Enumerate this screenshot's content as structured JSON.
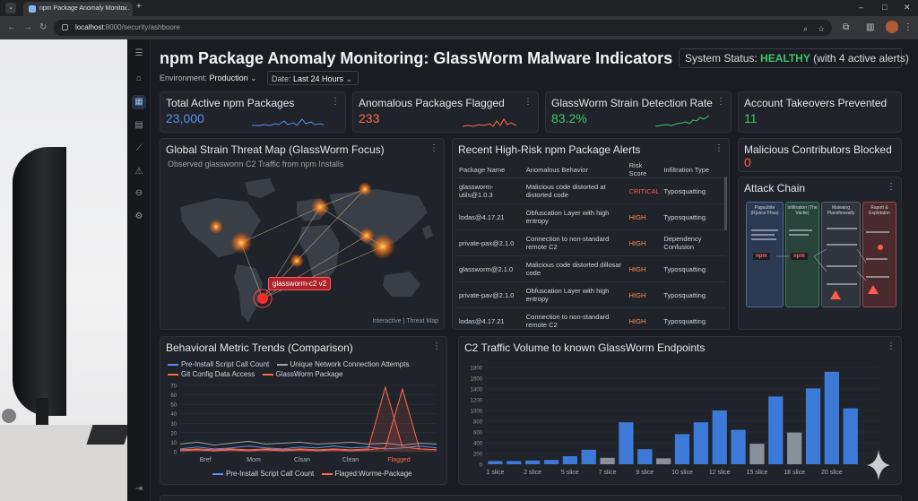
{
  "browser": {
    "tab_title": "npm Package Anomaly Monito...",
    "url_host": "localhost",
    "url_path": ":8000/security/ashboore"
  },
  "header": {
    "title": "npm Package Anomaly Monitoring: GlassWorm Malware Indicators",
    "status_prefix": "System Status:",
    "status_value": "HEALTHY",
    "status_suffix": "(with 4 active alerts)",
    "status_color": "#3ec46d"
  },
  "filters": {
    "environment_label": "Environment:",
    "environment_value": "Production",
    "date_label": "Date:",
    "date_value": "Last 24 Hours"
  },
  "kpis": [
    {
      "title": "Total Active npm Packages",
      "value": "23,000",
      "color": "#5b8ff0"
    },
    {
      "title": "Anomalous Packages Flagged",
      "value": "233",
      "color": "#ff6a50"
    },
    {
      "title": "GlassWorm Strain Detection Rate",
      "value": "83.2%",
      "color": "#3ec46d"
    },
    {
      "title": "Account Takeovers Prevented",
      "value": "11",
      "color": "#3ec46d"
    },
    {
      "title": "Malicious Contributors Blocked",
      "value": "0",
      "color": "#ff5a4d"
    }
  ],
  "map": {
    "title": "Global Strain Threat Map (GlassWorm Focus)",
    "subtitle": "Observed glassworm C2 Traffic from npm Installs",
    "callout": "glassworm-c2 v2",
    "footer": "Interactive | Threat Map"
  },
  "alerts": {
    "title": "Recent High-Risk npm Package Alerts",
    "columns": [
      "Package Name",
      "Anomalous Behavior",
      "Risk Score",
      "Infiltration Type"
    ],
    "rows": [
      {
        "package": "glassworm-utils@1.0.3",
        "behavior": "Malicious code distorted at distorted code",
        "risk": "CRITICAL",
        "type": "Typosquatting"
      },
      {
        "package": "lodas@4.17.21",
        "behavior": "Obfuscation Layer with high entropy",
        "risk": "HIGH",
        "type": "Typosquatting"
      },
      {
        "package": "private-pax@2.1.0",
        "behavior": "Connection to non-standard remote C2",
        "risk": "HIGH",
        "type": "Dependency Confusion"
      },
      {
        "package": "glassworm@2.1.0",
        "behavior": "Malicious code distorted dillosar code",
        "risk": "HIGH",
        "type": "Typosquatting"
      },
      {
        "package": "private-pav@2.1.0",
        "behavior": "Obfuscation Layer with high entropy",
        "risk": "HIGH",
        "type": "Typosquatting"
      },
      {
        "package": "lodas@4.17.21",
        "behavior": "Connection to non-standard remote C2",
        "risk": "HIGH",
        "type": "Typosquatting"
      }
    ]
  },
  "attack_chain": {
    "title": "Attack Chain",
    "stages": [
      "Paguubite (Rjusce Fhsa)",
      "Infiltration (The Vactie)",
      "Malwang Plansfoowally",
      "Rapott & Explotaton"
    ],
    "nodes": [
      "npm",
      "npm"
    ]
  },
  "trends": {
    "title": "Behavioral Metric Trends (Comparison)",
    "legend_top": [
      "Pre-Install Script Call Count",
      "Unique Network Connection Attempts",
      "Git Config Data Access",
      "GlassWorm Package"
    ],
    "legend_bottom": [
      "Pre-Install Script Call Count",
      "Flaged:Worme-Package"
    ],
    "colors": [
      "#5b8ff0",
      "#9aa1ad",
      "#ff6a50",
      "#ff6a50"
    ]
  },
  "chart_data": [
    {
      "type": "line",
      "title": "Behavioral Metric Trends (Comparison)",
      "categories": [
        "Bref",
        "Mom",
        "Clsan",
        "Clean",
        "Flagged"
      ],
      "ylim": [
        0,
        70
      ],
      "yticks": [
        0,
        10,
        20,
        30,
        40,
        50,
        60,
        70
      ],
      "x": [
        0,
        1,
        2,
        3,
        4,
        5,
        6,
        7,
        8,
        9,
        10,
        11,
        12,
        13,
        14,
        15
      ],
      "series": [
        {
          "name": "Pre-Install Script Call Count",
          "color": "#5b8ff0",
          "values": [
            3,
            5,
            3,
            4,
            6,
            4,
            3,
            5,
            4,
            6,
            4,
            5,
            3,
            4,
            6,
            4
          ]
        },
        {
          "name": "Unique Network Connection Attempts",
          "color": "#9aa1ad",
          "values": [
            8,
            10,
            7,
            9,
            11,
            8,
            9,
            10,
            8,
            9,
            10,
            8,
            9,
            7,
            9,
            8
          ]
        },
        {
          "name": "Git Config Data Access",
          "color": "#ff6a50",
          "values": [
            2,
            3,
            2,
            3,
            2,
            3,
            2,
            3,
            2,
            3,
            2,
            3,
            68,
            5,
            3,
            2
          ]
        },
        {
          "name": "GlassWorm Package",
          "color": "#ff6a50",
          "values": [
            1,
            2,
            1,
            2,
            1,
            2,
            1,
            2,
            1,
            2,
            1,
            2,
            4,
            66,
            3,
            2
          ]
        }
      ]
    },
    {
      "type": "bar",
      "title": "C2 Traffic Volume to known GlassWorm Endpoints",
      "categories": [
        "1",
        "2",
        "3",
        "4",
        "5",
        "6",
        "7",
        "8",
        "9",
        "10",
        "11",
        "12",
        "13",
        "14",
        "15",
        "16",
        "17",
        "18",
        "19",
        "20",
        "21"
      ],
      "tick_labels": [
        {
          "at": 1,
          "label": "1 slice"
        },
        {
          "at": 3,
          "label": "2 slice"
        },
        {
          "at": 5,
          "label": "5 slice"
        },
        {
          "at": 7,
          "label": "7 slice"
        },
        {
          "at": 9,
          "label": "9 slice"
        },
        {
          "at": 11,
          "label": "10 slice"
        },
        {
          "at": 13,
          "label": "12 slice"
        },
        {
          "at": 15,
          "label": "15 slice"
        },
        {
          "at": 17,
          "label": "18 slice"
        },
        {
          "at": 19,
          "label": "20 slice"
        }
      ],
      "ylim": [
        0,
        1800
      ],
      "yticks": [
        0,
        200,
        400,
        600,
        800,
        1000,
        1200,
        1400,
        1600,
        1800
      ],
      "values": [
        60,
        60,
        70,
        80,
        150,
        270,
        120,
        780,
        280,
        110,
        560,
        780,
        1000,
        640,
        380,
        1260,
        590,
        1410,
        1720,
        1040,
        0
      ],
      "colors": [
        "#3d7ad8",
        "#3d7ad8",
        "#3d7ad8",
        "#3d7ad8",
        "#3d7ad8",
        "#3d7ad8",
        "#8a909b",
        "#3d7ad8",
        "#3d7ad8",
        "#8a909b",
        "#3d7ad8",
        "#3d7ad8",
        "#3d7ad8",
        "#3d7ad8",
        "#8a909b",
        "#3d7ad8",
        "#8a909b",
        "#3d7ad8",
        "#3d7ad8",
        "#3d7ad8",
        "#3d7ad8"
      ]
    }
  ]
}
